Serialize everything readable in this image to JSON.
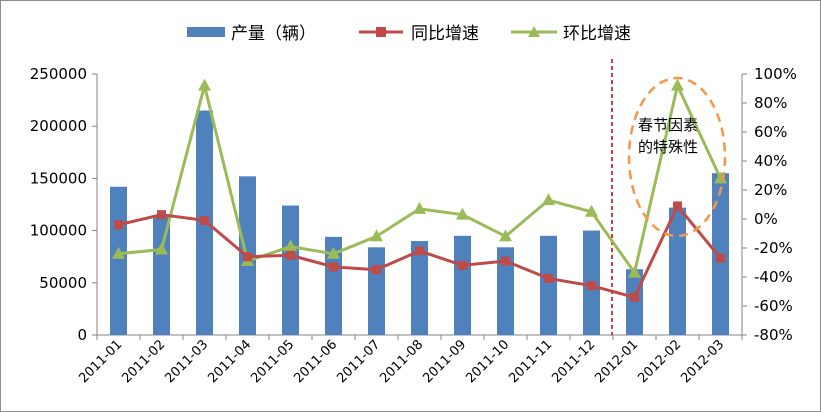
{
  "chart_data": {
    "type": "bar",
    "categories": [
      "2011-01",
      "2011-02",
      "2011-03",
      "2011-04",
      "2011-05",
      "2011-06",
      "2011-07",
      "2011-08",
      "2011-09",
      "2011-10",
      "2011-11",
      "2011-12",
      "2012-01",
      "2012-02",
      "2012-03"
    ],
    "series": [
      {
        "name": "产量（辆）",
        "type": "bar",
        "axis": "left",
        "color": "#4f81bd",
        "values": [
          142000,
          113000,
          215000,
          152000,
          124000,
          94000,
          84000,
          90000,
          95000,
          84000,
          95000,
          100000,
          63000,
          122000,
          155000
        ]
      },
      {
        "name": "同比增速",
        "type": "line",
        "axis": "right",
        "marker": "square",
        "color": "#be4b48",
        "values": [
          -4,
          3,
          -1,
          -26,
          -25,
          -33,
          -35,
          -22,
          -32,
          -29,
          -41,
          -46,
          -54,
          9,
          -27
        ]
      },
      {
        "name": "环比增速",
        "type": "line",
        "axis": "right",
        "marker": "triangle",
        "color": "#9bbb59",
        "values": [
          -24,
          -21,
          92,
          -29,
          -19,
          -24,
          -12,
          7,
          3,
          -12,
          13,
          5,
          -37,
          92,
          28
        ]
      }
    ],
    "yticks_left": [
      "250000",
      "200000",
      "150000",
      "100000",
      "50000",
      "0"
    ],
    "yticks_right": [
      "100%",
      "80%",
      "60%",
      "40%",
      "20%",
      "0%",
      "-20%",
      "-40%",
      "-60%",
      "-80%"
    ],
    "ylim_left": [
      0,
      250000
    ],
    "ylim_right": [
      -80,
      100
    ],
    "legend_position": "top",
    "grid": false,
    "annotation": {
      "lines": [
        "春节因素",
        "的特殊性"
      ],
      "shape": "dashed-ellipse",
      "color": "#f79646",
      "divider_color": "#c00000"
    }
  }
}
